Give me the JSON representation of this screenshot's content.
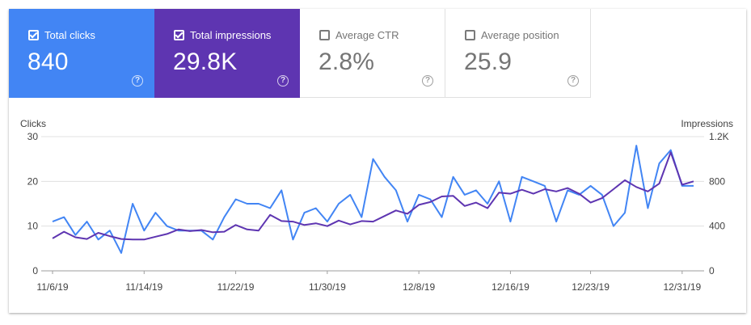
{
  "tiles": [
    {
      "label": "Total clicks",
      "value": "840",
      "checked": true
    },
    {
      "label": "Total impressions",
      "value": "29.8K",
      "checked": true
    },
    {
      "label": "Average CTR",
      "value": "2.8%",
      "checked": false
    },
    {
      "label": "Average position",
      "value": "25.9",
      "checked": false
    }
  ],
  "help_glyph": "?",
  "colors": {
    "clicks": "#4285f4",
    "impressions": "#5e35b1",
    "grid": "#e0e0e0"
  },
  "chart_data": {
    "type": "line",
    "left_axis_label": "Clicks",
    "right_axis_label": "Impressions",
    "left_ticks": [
      "0",
      "10",
      "20",
      "30"
    ],
    "right_ticks": [
      "0",
      "400",
      "800",
      "1.2K"
    ],
    "left_range": [
      0,
      30
    ],
    "right_range": [
      0,
      1200
    ],
    "x_tick_labels": [
      "11/6/19",
      "11/14/19",
      "11/22/19",
      "11/30/19",
      "12/8/19",
      "12/16/19",
      "12/23/19",
      "12/31/19"
    ],
    "x_tick_indices": [
      0,
      8,
      16,
      24,
      32,
      40,
      47,
      55
    ],
    "series": [
      {
        "name": "Total clicks",
        "axis": "left",
        "values": [
          11,
          12,
          8,
          11,
          7,
          9,
          4,
          15,
          9,
          13,
          10,
          9,
          9,
          9,
          7,
          12,
          16,
          15,
          15,
          14,
          18,
          7,
          13,
          14,
          11,
          15,
          17,
          12,
          25,
          21,
          18,
          11,
          17,
          16,
          12,
          21,
          17,
          18,
          15,
          20,
          11,
          21,
          20,
          19,
          11,
          18,
          17,
          19,
          17,
          10,
          13,
          28,
          14,
          24,
          27,
          19,
          19
        ]
      },
      {
        "name": "Total impressions",
        "axis": "right",
        "values": [
          290,
          350,
          300,
          285,
          340,
          310,
          285,
          280,
          280,
          305,
          330,
          370,
          355,
          365,
          345,
          350,
          410,
          370,
          360,
          500,
          445,
          440,
          410,
          425,
          400,
          450,
          415,
          445,
          440,
          490,
          540,
          510,
          590,
          615,
          665,
          670,
          580,
          610,
          560,
          700,
          690,
          725,
          690,
          730,
          710,
          740,
          690,
          610,
          650,
          730,
          810,
          750,
          710,
          780,
          1060,
          770,
          800
        ]
      }
    ]
  }
}
